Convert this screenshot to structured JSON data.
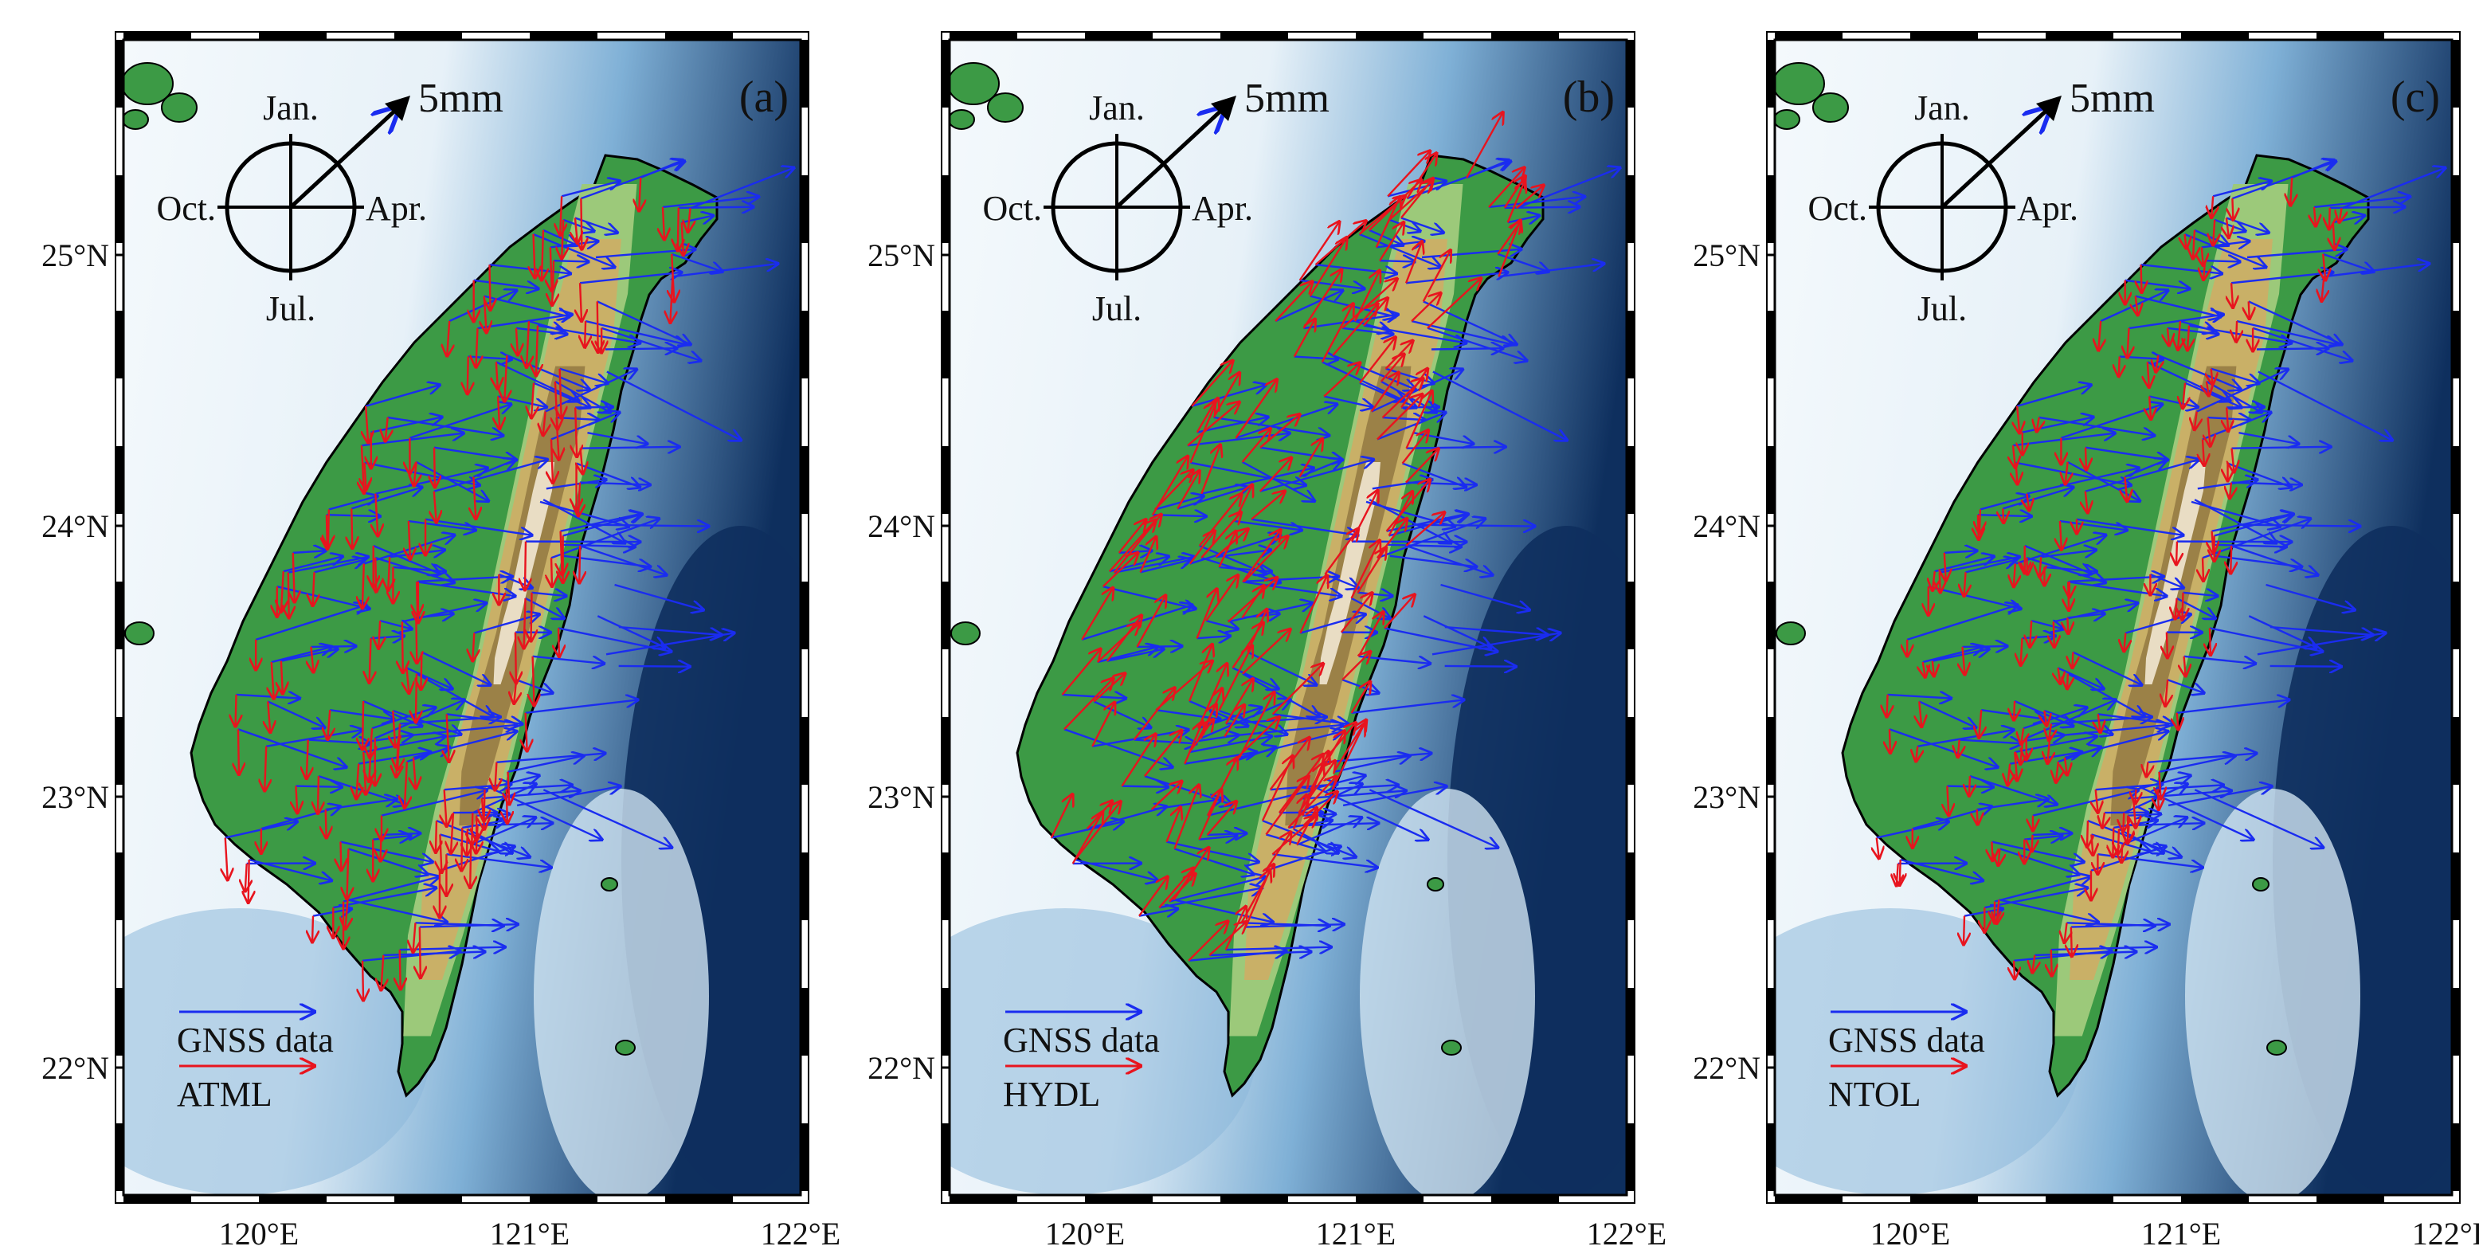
{
  "axes": {
    "lat_labels": [
      "25°N",
      "24°N",
      "23°N",
      "22°N"
    ],
    "lon_labels": [
      "120°E",
      "121°E",
      "122°E"
    ],
    "lat_values": [
      25,
      24,
      23,
      22
    ],
    "lon_values": [
      120,
      121,
      122
    ]
  },
  "legend": {
    "clock": {
      "north": "Jan.",
      "east": "Apr.",
      "south": "Jul.",
      "west": "Oct."
    },
    "scale_label": "5mm",
    "gnss_label": "GNSS data"
  },
  "colors": {
    "gnss": "#1a2cf0",
    "model": "#e8141e",
    "ocean_light": "#eef6fb",
    "ocean_deep": "#0e2f5e",
    "land_low": "#3c9a45",
    "land_mid": "#c9b067",
    "land_high": "#ffffff"
  },
  "panels": [
    {
      "letter": "(a)",
      "model_label": "ATML",
      "model_style": "short-south"
    },
    {
      "letter": "(b)",
      "model_label": "HYDL",
      "model_style": "northeast"
    },
    {
      "letter": "(c)",
      "model_label": "NTOL",
      "model_style": "short-south"
    }
  ]
}
